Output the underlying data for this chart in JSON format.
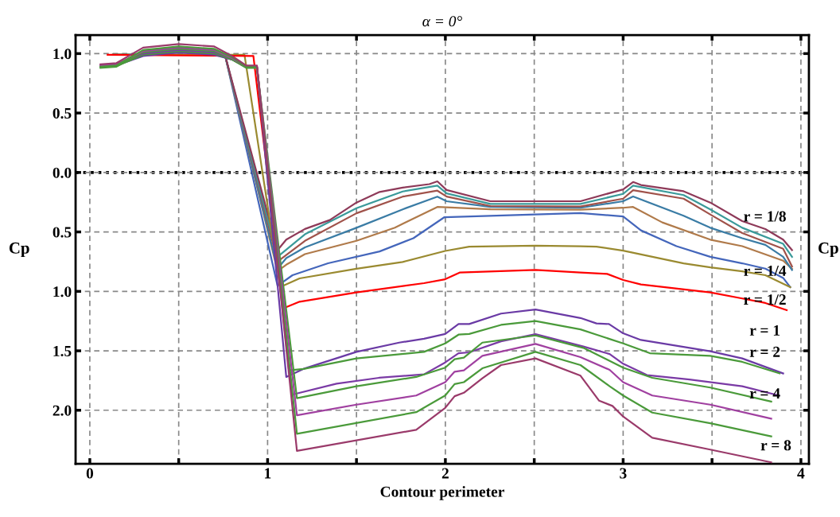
{
  "chart_data": {
    "type": "line",
    "title": "α = 0°",
    "xlabel": "Contour perimeter",
    "ylabel": "Cp",
    "y2label": "Cp",
    "xlim": [
      -0.08,
      4.045
    ],
    "ylim": [
      -2.45,
      1.155
    ],
    "xticks": [
      0,
      {
        "value": 0.5,
        "label": null
      },
      1,
      {
        "value": 1.5,
        "label": null
      },
      2,
      {
        "value": 2.5,
        "label": null
      },
      3,
      {
        "value": 3.5,
        "label": null
      },
      4
    ],
    "yticks": [
      {
        "value": -2,
        "label": "2.0"
      },
      {
        "value": -1.5,
        "label": "1.5"
      },
      {
        "value": -1,
        "label": "1.0"
      },
      {
        "value": -0.5,
        "label": "0.5"
      },
      {
        "value": 0,
        "label": "0.0"
      },
      {
        "value": 0.5,
        "label": "0.5"
      },
      {
        "value": 1,
        "label": "1.0"
      }
    ],
    "grid": true,
    "marker": "none",
    "line_style": "solid",
    "ref_lines": [
      {
        "axis": "y",
        "value": 0,
        "color": "#000000",
        "line_style": "dotted"
      }
    ],
    "annotations": [
      "r = 1/8",
      "r = 1/4",
      "r = 1/2",
      "r = 1",
      "r = 2",
      "r = 4",
      "r = 8"
    ],
    "series": [
      {
        "color": "#4466bb",
        "x": [
          0.13,
          0.76,
          1.056,
          1.14,
          1.34,
          1.63,
          1.82,
          1.995,
          2.76,
          3.0,
          3.1,
          3.3,
          3.49,
          3.67,
          3.8,
          3.9,
          3.94
        ],
        "values": [
          0.99,
          0.99,
          -0.953,
          -0.864,
          -0.764,
          -0.664,
          -0.553,
          -0.376,
          -0.342,
          -0.37,
          -0.487,
          -0.62,
          -0.709,
          -0.764,
          -0.809,
          -0.887,
          -0.964
        ]
      },
      {
        "color": "#b07a4a",
        "x": [
          0.13,
          0.76,
          1.056,
          1.105,
          1.21,
          1.5,
          1.716,
          1.955,
          2.253,
          2.76,
          3.0,
          3.056,
          3.22,
          3.49,
          3.67,
          3.9,
          3.95
        ],
        "values": [
          0.99,
          0.99,
          -0.83,
          -0.776,
          -0.687,
          -0.575,
          -0.464,
          -0.29,
          -0.31,
          -0.313,
          -0.297,
          -0.29,
          -0.42,
          -0.565,
          -0.62,
          -0.742,
          -0.81
        ]
      },
      {
        "color": "#3a7ca5",
        "x": [
          0.13,
          0.76,
          1.056,
          1.105,
          1.21,
          1.5,
          1.76,
          1.955,
          2.007,
          2.253,
          2.76,
          3.0,
          3.056,
          3.34,
          3.49,
          3.67,
          3.8,
          3.9,
          3.95
        ],
        "values": [
          0.99,
          0.99,
          -0.81,
          -0.72,
          -0.63,
          -0.465,
          -0.31,
          -0.203,
          -0.242,
          -0.29,
          -0.297,
          -0.242,
          -0.202,
          -0.364,
          -0.465,
          -0.553,
          -0.609,
          -0.709,
          -0.82
        ]
      },
      {
        "color": "#a0524a",
        "x": [
          0.13,
          0.76,
          1.056,
          1.21,
          1.5,
          1.76,
          1.955,
          2.007,
          2.253,
          2.76,
          3.0,
          3.056,
          3.34,
          3.49,
          3.67,
          3.9,
          3.95
        ],
        "values": [
          0.99,
          0.99,
          -0.75,
          -0.575,
          -0.343,
          -0.203,
          -0.153,
          -0.203,
          -0.282,
          -0.286,
          -0.22,
          -0.149,
          -0.22,
          -0.353,
          -0.509,
          -0.642,
          -0.79
        ]
      },
      {
        "color": "#3a9a9a",
        "x": [
          0.13,
          0.76,
          1.056,
          1.21,
          1.5,
          1.76,
          1.955,
          2.007,
          2.253,
          2.76,
          3.0,
          3.056,
          3.34,
          3.49,
          3.67,
          3.9,
          3.95
        ],
        "values": [
          0.99,
          0.99,
          -0.71,
          -0.52,
          -0.3,
          -0.16,
          -0.11,
          -0.176,
          -0.264,
          -0.264,
          -0.18,
          -0.11,
          -0.19,
          -0.31,
          -0.465,
          -0.6,
          -0.71
        ]
      },
      {
        "color": "#8e3a59",
        "x": [
          0.76,
          1.056,
          1.105,
          1.21,
          1.35,
          1.5,
          1.63,
          1.76,
          1.91,
          1.955,
          2.007,
          2.253,
          2.76,
          3.0,
          3.056,
          3.1,
          3.34,
          3.49,
          3.67,
          3.8,
          3.9,
          3.95
        ],
        "values": [
          0.99,
          -0.653,
          -0.565,
          -0.475,
          -0.4,
          -0.253,
          -0.164,
          -0.127,
          -0.098,
          -0.075,
          -0.147,
          -0.242,
          -0.242,
          -0.142,
          -0.08,
          -0.105,
          -0.158,
          -0.253,
          -0.409,
          -0.476,
          -0.565,
          -0.653
        ]
      },
      {
        "color": "#9a8a30",
        "x": [
          0.13,
          0.87,
          1.07,
          1.18,
          1.5,
          1.76,
          1.999,
          2.134,
          2.507,
          2.76,
          2.85,
          3.0,
          3.34,
          3.49,
          3.67,
          3.8,
          3.94
        ],
        "values": [
          0.99,
          0.99,
          -0.965,
          -0.891,
          -0.81,
          -0.753,
          -0.66,
          -0.624,
          -0.615,
          -0.62,
          -0.624,
          -0.657,
          -0.764,
          -0.798,
          -0.831,
          -0.864,
          -0.964
        ]
      },
      {
        "color": "#ff0000",
        "x": [
          0.1,
          0.92,
          1.09,
          1.18,
          1.5,
          1.88,
          1.999,
          2.08,
          2.507,
          2.76,
          2.91,
          3.0,
          3.1,
          3.49,
          3.67,
          3.8,
          3.92
        ],
        "values": [
          0.99,
          0.98,
          -1.142,
          -1.087,
          -1.009,
          -0.931,
          -0.898,
          -0.842,
          -0.82,
          -0.842,
          -0.853,
          -0.904,
          -0.942,
          -1.009,
          -1.06,
          -1.098,
          -1.158
        ]
      },
      {
        "color": "#6a3aa5",
        "x": [
          0.06,
          0.15,
          0.3,
          0.5,
          0.7,
          0.8,
          0.88,
          0.94,
          1.105,
          1.2,
          1.5,
          1.74,
          1.88,
          1.999,
          2.074,
          2.134,
          2.313,
          2.507,
          2.76,
          2.85,
          2.92,
          3.0,
          3.1,
          3.49,
          3.67,
          3.9
        ],
        "values": [
          0.89,
          0.9,
          0.98,
          1.01,
          0.99,
          0.95,
          0.89,
          0.89,
          -1.72,
          -1.653,
          -1.509,
          -1.431,
          -1.398,
          -1.358,
          -1.275,
          -1.275,
          -1.187,
          -1.153,
          -1.224,
          -1.27,
          -1.275,
          -1.353,
          -1.409,
          -1.504,
          -1.564,
          -1.69
        ]
      },
      {
        "color": "#4a9a3a",
        "x": [
          0.06,
          0.15,
          0.3,
          0.5,
          0.7,
          0.8,
          0.88,
          0.94,
          1.12,
          1.202,
          1.5,
          1.88,
          1.999,
          2.074,
          2.134,
          2.313,
          2.507,
          2.76,
          2.85,
          3.0,
          3.15,
          3.49,
          3.67,
          3.88
        ],
        "values": [
          0.885,
          0.895,
          0.99,
          1.02,
          1.0,
          0.95,
          0.885,
          0.885,
          -1.665,
          -1.653,
          -1.564,
          -1.509,
          -1.438,
          -1.364,
          -1.358,
          -1.282,
          -1.249,
          -1.32,
          -1.364,
          -1.438,
          -1.52,
          -1.542,
          -1.593,
          -1.69
        ]
      },
      {
        "color": "#7a3aa5",
        "x": [
          0.06,
          0.15,
          0.3,
          0.5,
          0.7,
          0.8,
          0.88,
          0.94,
          1.137,
          1.388,
          1.627,
          1.88,
          1.999,
          2.074,
          2.134,
          2.313,
          2.507,
          2.776,
          2.924,
          3.0,
          3.134,
          3.373,
          3.67,
          3.876
        ],
        "values": [
          0.9,
          0.91,
          1.0,
          1.03,
          1.01,
          0.95,
          0.89,
          0.89,
          -1.869,
          -1.776,
          -1.727,
          -1.698,
          -1.598,
          -1.52,
          -1.513,
          -1.42,
          -1.36,
          -1.464,
          -1.527,
          -1.609,
          -1.704,
          -1.742,
          -1.798,
          -1.876
        ]
      },
      {
        "color": "#4a9a3a",
        "x": [
          0.06,
          0.15,
          0.3,
          0.5,
          0.7,
          0.8,
          0.88,
          0.94,
          1.165,
          1.5,
          1.836,
          1.999,
          2.052,
          2.104,
          2.208,
          2.507,
          2.776,
          3.0,
          3.164,
          3.49,
          3.833
        ],
        "values": [
          0.88,
          0.89,
          1.01,
          1.04,
          1.02,
          0.95,
          0.88,
          0.88,
          -1.898,
          -1.798,
          -1.72,
          -1.642,
          -1.571,
          -1.558,
          -1.431,
          -1.371,
          -1.475,
          -1.642,
          -1.727,
          -1.809,
          -1.927
        ]
      },
      {
        "color": "#a040a0",
        "x": [
          0.06,
          0.15,
          0.3,
          0.5,
          0.7,
          0.8,
          0.88,
          0.94,
          1.165,
          1.5,
          1.836,
          1.999,
          2.052,
          2.104,
          2.208,
          2.507,
          2.76,
          2.924,
          3.0,
          3.164,
          3.49,
          3.833
        ],
        "values": [
          0.9,
          0.91,
          1.02,
          1.05,
          1.03,
          0.96,
          0.89,
          0.89,
          -2.042,
          -1.953,
          -1.876,
          -1.764,
          -1.676,
          -1.664,
          -1.542,
          -1.442,
          -1.553,
          -1.66,
          -1.764,
          -1.876,
          -1.953,
          -2.071
        ]
      },
      {
        "color": "#4a9a3a",
        "x": [
          0.06,
          0.15,
          0.3,
          0.5,
          0.7,
          0.8,
          0.88,
          0.94,
          1.165,
          1.836,
          1.999,
          2.052,
          2.104,
          2.208,
          2.507,
          2.76,
          2.924,
          3.0,
          3.164,
          3.49,
          3.833
        ],
        "values": [
          0.89,
          0.9,
          1.03,
          1.06,
          1.04,
          0.97,
          0.89,
          0.89,
          -2.198,
          -2.016,
          -1.876,
          -1.78,
          -1.764,
          -1.647,
          -1.509,
          -1.62,
          -1.798,
          -1.876,
          -2.02,
          -2.109,
          -2.22
        ]
      },
      {
        "color": "#9a3a6a",
        "x": [
          0.06,
          0.15,
          0.3,
          0.5,
          0.7,
          0.8,
          0.88,
          0.94,
          1.165,
          1.836,
          1.999,
          2.052,
          2.104,
          2.208,
          2.313,
          2.507,
          2.76,
          2.865,
          2.94,
          3.0,
          3.164,
          3.49,
          3.833
        ],
        "values": [
          0.91,
          0.92,
          1.05,
          1.08,
          1.06,
          0.98,
          0.9,
          0.9,
          -2.342,
          -2.164,
          -1.98,
          -1.882,
          -1.853,
          -1.731,
          -1.62,
          -1.564,
          -1.709,
          -1.92,
          -1.964,
          -2.053,
          -2.231,
          -2.331,
          -2.438
        ]
      }
    ]
  }
}
